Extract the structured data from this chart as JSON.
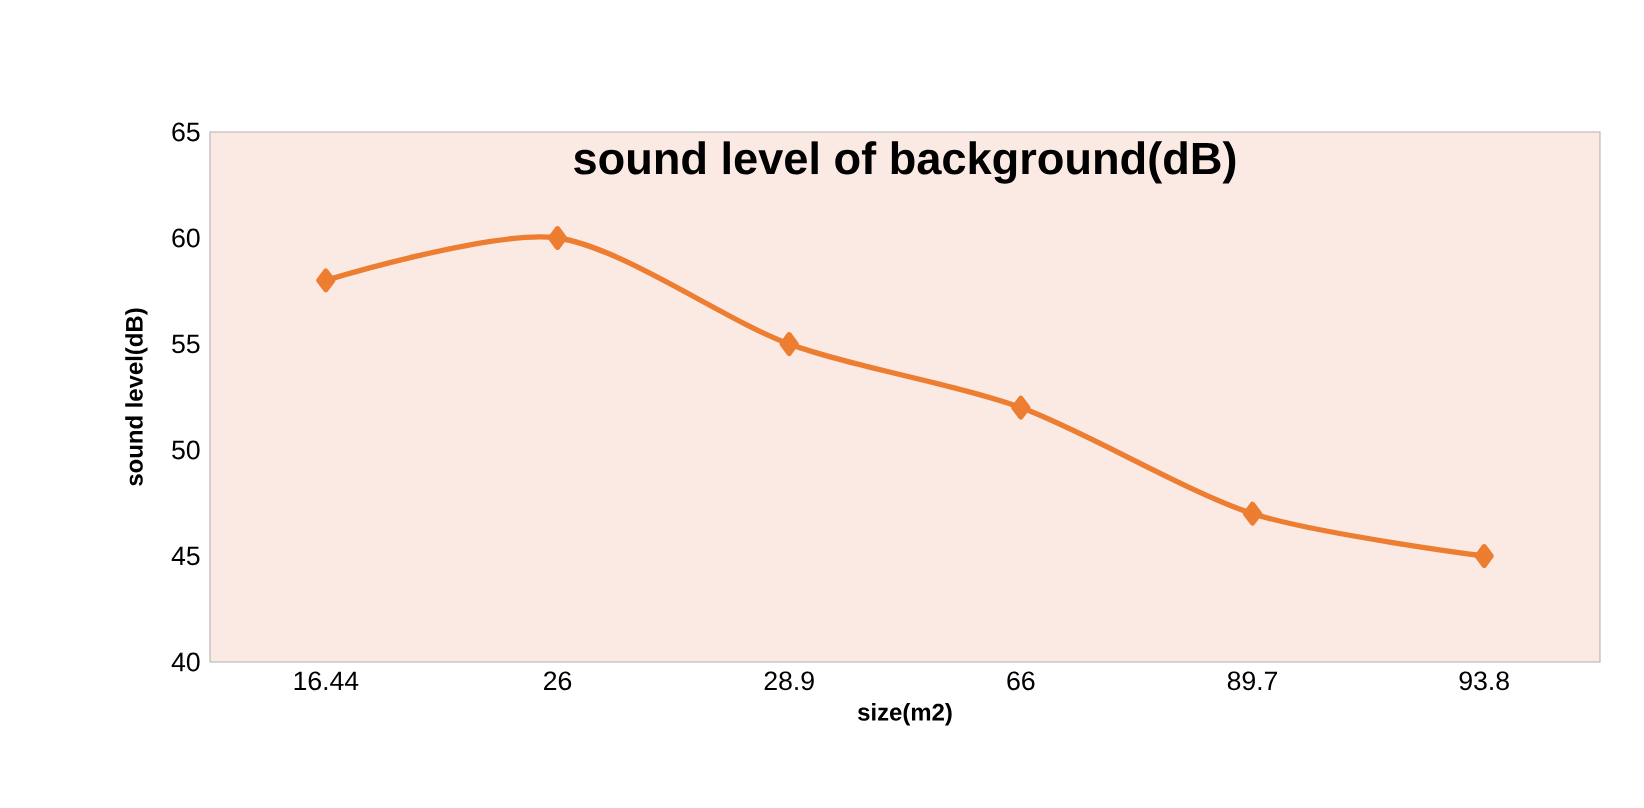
{
  "chart_data": {
    "type": "line",
    "title": "sound level of background(dB)",
    "xlabel": "size(m2)",
    "ylabel": "sound level(dB)",
    "categories": [
      "16.44",
      "26",
      "28.9",
      "66",
      "89.7",
      "93.8"
    ],
    "values": [
      58,
      60,
      55,
      52,
      47,
      45
    ],
    "color": "#ed7d31",
    "marker": "diamond",
    "line_style": "solid",
    "ylim": [
      40,
      65
    ],
    "yticks": [
      40,
      45,
      50,
      55,
      60,
      65
    ]
  }
}
